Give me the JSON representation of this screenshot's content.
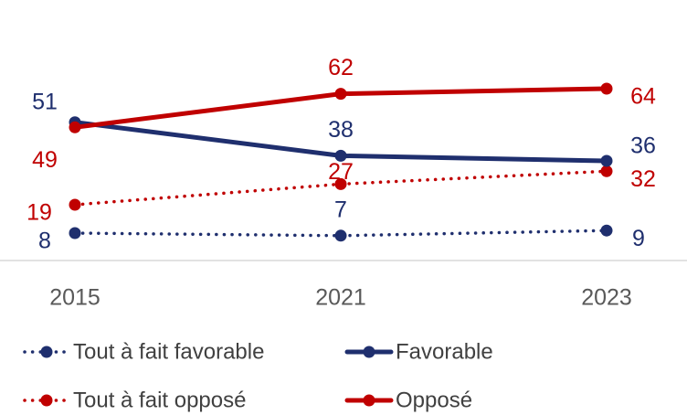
{
  "chart_data": {
    "type": "line",
    "title": "",
    "xlabel": "",
    "ylabel": "",
    "x": [
      "2015",
      "2021",
      "2023"
    ],
    "ylim": [
      0,
      70
    ],
    "grid": false,
    "legend_position": "bottom",
    "series": [
      {
        "name": "Tout à fait favorable",
        "values": [
          8,
          7,
          9
        ],
        "color": "#1f2f6e",
        "style": "dotted"
      },
      {
        "name": "Favorable",
        "values": [
          51,
          38,
          36
        ],
        "color": "#1f2f6e",
        "style": "solid"
      },
      {
        "name": "Tout à fait opposé",
        "values": [
          19,
          27,
          32
        ],
        "color": "#c00000",
        "style": "dotted"
      },
      {
        "name": "Opposé",
        "values": [
          49,
          62,
          64
        ],
        "color": "#c00000",
        "style": "solid"
      }
    ]
  }
}
